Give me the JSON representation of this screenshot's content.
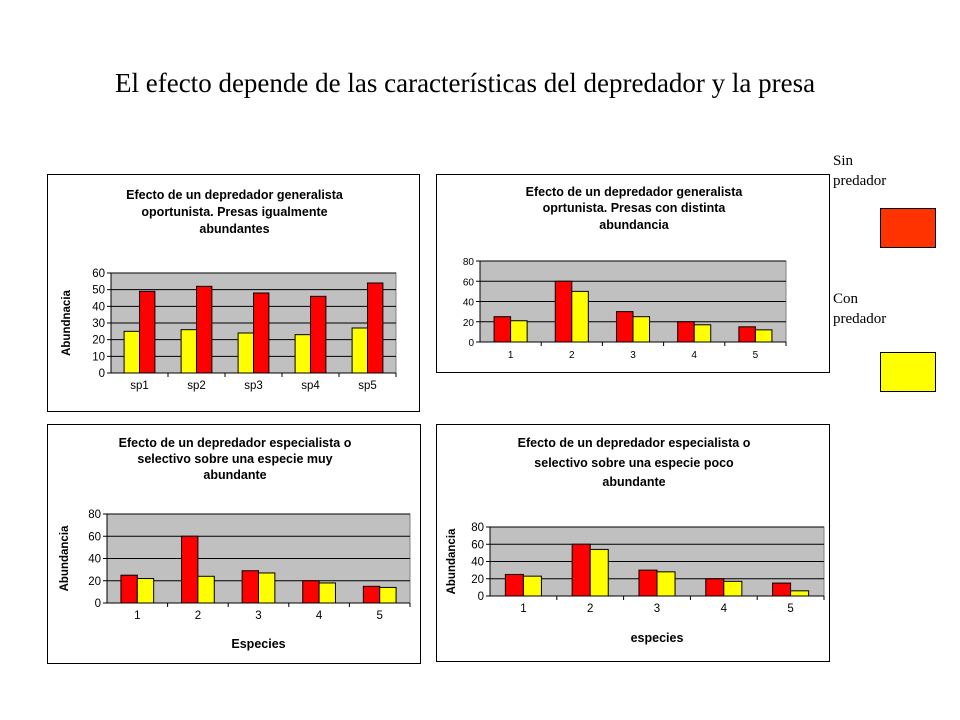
{
  "slide_title": "El efecto depende de las características del depredador y la presa",
  "legend": {
    "items": [
      {
        "label_line1": "Sin",
        "label_line2": "predador",
        "color": "#FF3300"
      },
      {
        "label_line1": "Con",
        "label_line2": "predador",
        "color": "#FFFF00"
      }
    ]
  },
  "colors": {
    "series_red": "#FF0000",
    "series_yellow": "#FFFF00",
    "plot_bg": "#C0C0C0"
  },
  "chart_data": [
    {
      "type": "bar",
      "title": [
        "Efecto de un depredador generalista",
        "oportunista. Presas igualmente",
        "abundantes"
      ],
      "xlabel": "",
      "ylabel": "Abundnacia",
      "categories": [
        "sp1",
        "sp2",
        "sp3",
        "sp4",
        "sp5"
      ],
      "series": [
        {
          "values": [
            25,
            26,
            24,
            23,
            27
          ],
          "color": "#FFFF00"
        },
        {
          "values": [
            49,
            52,
            48,
            46,
            54
          ],
          "color": "#FF0000"
        }
      ],
      "ylim": [
        0,
        60
      ],
      "yticks": [
        0,
        10,
        20,
        30,
        40,
        50,
        60
      ],
      "grid": true
    },
    {
      "type": "bar",
      "title": [
        "Efecto de un depredador generalista",
        "oprtunista. Presas con distinta",
        "abundancia"
      ],
      "xlabel": "",
      "ylabel": "",
      "categories": [
        "1",
        "2",
        "3",
        "4",
        "5"
      ],
      "series": [
        {
          "values": [
            25,
            60,
            30,
            20,
            15
          ],
          "color": "#FF0000"
        },
        {
          "values": [
            21,
            50,
            25,
            17,
            12
          ],
          "color": "#FFFF00"
        }
      ],
      "ylim": [
        0,
        80
      ],
      "yticks": [
        0,
        20,
        40,
        60,
        80
      ],
      "grid": true
    },
    {
      "type": "bar",
      "title": [
        "Efecto de un depredador especialista o",
        "selectivo sobre una especie muy",
        "abundante"
      ],
      "xlabel": "Especies",
      "ylabel": "Abundancia",
      "categories": [
        "1",
        "2",
        "3",
        "4",
        "5"
      ],
      "series": [
        {
          "values": [
            25,
            60,
            29,
            20,
            15
          ],
          "color": "#FF0000"
        },
        {
          "values": [
            22,
            24,
            27,
            18,
            14
          ],
          "color": "#FFFF00"
        }
      ],
      "ylim": [
        0,
        80
      ],
      "yticks": [
        0,
        20,
        40,
        60,
        80
      ],
      "grid": true
    },
    {
      "type": "bar",
      "title": [
        "Efecto de un depredador especialista o",
        "selectivo sobre una especie poco",
        "abundante"
      ],
      "xlabel": "especies",
      "ylabel": "Abundancia",
      "categories": [
        "1",
        "2",
        "3",
        "4",
        "5"
      ],
      "series": [
        {
          "values": [
            25,
            60,
            30,
            20,
            15
          ],
          "color": "#FF0000"
        },
        {
          "values": [
            23,
            54,
            28,
            17,
            6
          ],
          "color": "#FFFF00"
        }
      ],
      "ylim": [
        0,
        80
      ],
      "yticks": [
        0,
        20,
        40,
        60,
        80
      ],
      "grid": true
    }
  ]
}
